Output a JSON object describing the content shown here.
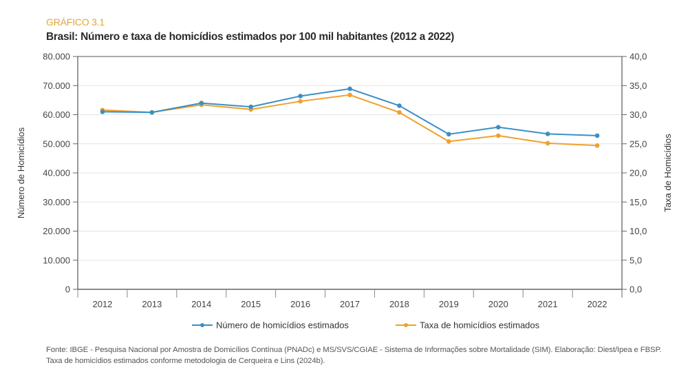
{
  "figure_label": "GRÁFICO 3.1",
  "source_note": "Fonte: IBGE - Pesquisa Nacional por Amostra de Domicílios Contínua (PNADc) e MS/SVS/CGIAE - Sistema de Informações sobre Mortalidade (SIM). Elaboração: Diest/Ipea e FBSP. Taxa de homicídios estimados conforme metodologia de Cerqueira e Lins (2024b).",
  "chart_data": {
    "type": "line",
    "title": "Brasil: Número e taxa de homicídios estimados por 100 mil habitantes (2012 a 2022)",
    "categories": [
      "2012",
      "2013",
      "2014",
      "2015",
      "2016",
      "2017",
      "2018",
      "2019",
      "2020",
      "2021",
      "2022"
    ],
    "ylabel": "Número de Homicídios",
    "y2label": "Taxa de Homicídios",
    "ylim": [
      0,
      80000
    ],
    "y2lim": [
      0,
      40
    ],
    "yticks": [
      "0",
      "10.000",
      "20.000",
      "30.000",
      "40.000",
      "50.000",
      "60.000",
      "70.000",
      "80.000"
    ],
    "y2ticks": [
      "0,0",
      "5,0",
      "10,0",
      "15,0",
      "20,0",
      "25,0",
      "30,0",
      "35,0",
      "40,0"
    ],
    "grid": true,
    "legend_position": "bottom-center",
    "series": [
      {
        "name": "Número de homicídios estimados",
        "axis": "left",
        "color": "#3a8fc5",
        "values": [
          61000,
          60800,
          64000,
          62700,
          66400,
          68900,
          63100,
          53300,
          55700,
          53400,
          52800
        ]
      },
      {
        "name": "Taxa de homicídios estimados",
        "axis": "right",
        "color": "#f0a02c",
        "values": [
          30.8,
          30.4,
          31.7,
          30.9,
          32.3,
          33.4,
          30.4,
          25.4,
          26.4,
          25.1,
          24.7
        ]
      }
    ]
  }
}
